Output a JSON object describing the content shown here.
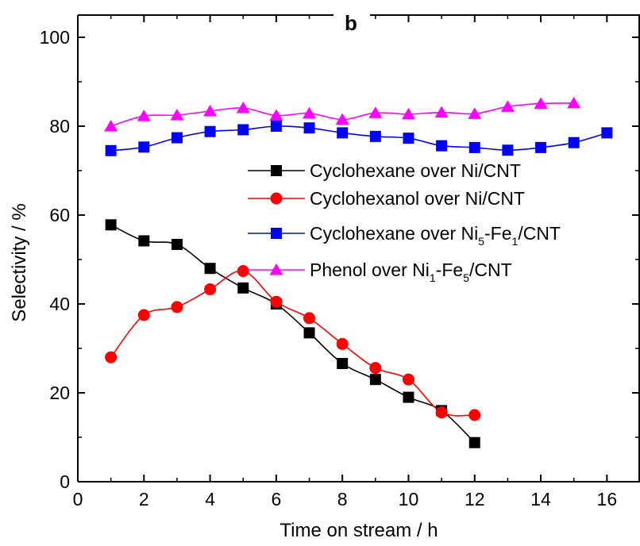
{
  "chart_data": {
    "type": "line",
    "panel_label": "b",
    "xlabel": "Time on stream / h",
    "ylabel": "Selectivity / %",
    "xlim": [
      0,
      17
    ],
    "ylim": [
      0,
      105
    ],
    "xticks": [
      0,
      2,
      4,
      6,
      8,
      10,
      12,
      14,
      16
    ],
    "yticks": [
      0,
      20,
      40,
      60,
      80,
      100
    ],
    "grid": false,
    "legend_position": "center-right",
    "series": [
      {
        "name": "Cyclohexane over Ni/CNT",
        "legend": {
          "main": "Cyclohexane over Ni/CNT",
          "sub1": "",
          "mid": "",
          "sub2": "",
          "tail": ""
        },
        "color": "#000000",
        "marker": "square",
        "x": [
          1,
          2,
          3,
          4,
          5,
          6,
          7,
          8,
          9,
          10,
          11,
          12
        ],
        "y": [
          57.8,
          54.2,
          53.4,
          48.0,
          43.6,
          40.0,
          33.5,
          26.6,
          23.0,
          19.0,
          16.0,
          8.8
        ]
      },
      {
        "name": "Cyclohexanol over Ni/CNT",
        "legend": {
          "main": "Cyclohexanol over Ni/CNT",
          "sub1": "",
          "mid": "",
          "sub2": "",
          "tail": ""
        },
        "color": "#ff0000",
        "marker": "circle",
        "x": [
          1,
          2,
          3,
          4,
          5,
          6,
          7,
          8,
          9,
          10,
          11,
          12
        ],
        "y": [
          28.0,
          37.5,
          39.3,
          43.3,
          47.4,
          40.5,
          36.8,
          31.0,
          25.6,
          23.0,
          15.6,
          15.0
        ]
      },
      {
        "name": "Cyclohexane over Ni5-Fe1/CNT",
        "legend": {
          "main": "Cyclohexane over Ni",
          "sub1": "5",
          "mid": "-Fe",
          "sub2": "1",
          "tail": "/CNT"
        },
        "color": "#0000ff",
        "marker": "square",
        "x": [
          1,
          2,
          3,
          4,
          5,
          6,
          7,
          8,
          9,
          10,
          11,
          12,
          13,
          14,
          15,
          16
        ],
        "y": [
          74.5,
          75.3,
          77.4,
          78.8,
          79.2,
          80.0,
          79.6,
          78.5,
          77.7,
          77.3,
          75.6,
          75.2,
          74.6,
          75.2,
          76.3,
          78.5
        ]
      },
      {
        "name": "Phenol over Ni1-Fe5/CNT",
        "legend": {
          "main": "Phenol over Ni",
          "sub1": "1",
          "mid": "-Fe",
          "sub2": "5",
          "tail": "/CNT"
        },
        "color": "#ff00ff",
        "marker": "triangle",
        "x": [
          1,
          2,
          3,
          4,
          5,
          6,
          7,
          8,
          9,
          10,
          11,
          12,
          13,
          14,
          15
        ],
        "y": [
          80.0,
          82.3,
          82.5,
          83.4,
          84.1,
          82.4,
          82.9,
          81.5,
          83.0,
          82.7,
          83.1,
          82.8,
          84.4,
          85.1,
          85.2
        ]
      }
    ]
  }
}
